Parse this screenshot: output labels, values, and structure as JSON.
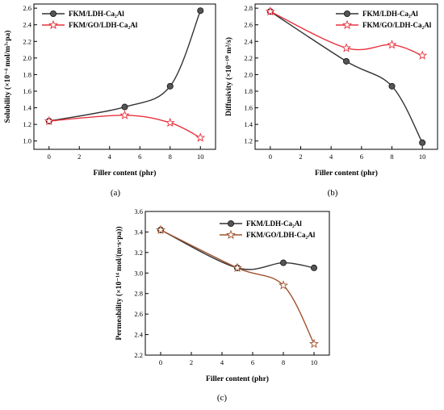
{
  "figure": {
    "captions": [
      "(a)",
      "(b)",
      "(c)"
    ]
  },
  "colors": {
    "ldh": "#333333",
    "ldh_marker": "#555555",
    "go_ab": "#e8323e",
    "go_c": "#a0522d"
  },
  "chart_data": [
    {
      "type": "line",
      "panel": "(a)",
      "xlabel": "Filler content (phr)",
      "ylabel": "Solubility (×10⁻⁴ mol/m³·pa)",
      "xlim": [
        -1,
        11
      ],
      "ylim": [
        0.9,
        2.65
      ],
      "xticks": [
        "0",
        "2",
        "4",
        "6",
        "8",
        "10"
      ],
      "yticks": [
        "1.0",
        "1.2",
        "1.4",
        "1.6",
        "1.8",
        "2.0",
        "2.2",
        "2.4",
        "2.6"
      ],
      "legend_position": "top-left",
      "series": [
        {
          "name": "FKM/LDH-Ca₂Al",
          "marker": "circle",
          "color": "#333333",
          "x": [
            0,
            5,
            8,
            10
          ],
          "y": [
            1.24,
            1.41,
            1.66,
            2.57
          ]
        },
        {
          "name": "FKM/GO/LDH-Ca₂Al",
          "marker": "star",
          "color": "#e8323e",
          "x": [
            0,
            5,
            8,
            10
          ],
          "y": [
            1.24,
            1.31,
            1.22,
            1.04
          ]
        }
      ]
    },
    {
      "type": "line",
      "panel": "(b)",
      "xlabel": "Filler content (phr)",
      "ylabel": "Diffusivity (×10⁻¹⁰ m²/s)",
      "xlim": [
        -1,
        11
      ],
      "ylim": [
        1.1,
        2.85
      ],
      "xticks": [
        "0",
        "2",
        "4",
        "6",
        "8",
        "10"
      ],
      "yticks": [
        "1.2",
        "1.4",
        "1.6",
        "1.8",
        "2.0",
        "2.2",
        "2.4",
        "2.6",
        "2.8"
      ],
      "legend_position": "top-right",
      "series": [
        {
          "name": "FKM/LDH-Ca₂Al",
          "marker": "circle",
          "color": "#333333",
          "x": [
            0,
            5,
            8,
            10
          ],
          "y": [
            2.76,
            2.16,
            1.86,
            1.18
          ]
        },
        {
          "name": "FKM/GO/LDH-Ca₂Al",
          "marker": "star",
          "color": "#e8323e",
          "x": [
            0,
            5,
            8,
            10
          ],
          "y": [
            2.76,
            2.32,
            2.36,
            2.23
          ]
        }
      ]
    },
    {
      "type": "line",
      "panel": "(c)",
      "xlabel": "Filler content (phr)",
      "ylabel": "Permeability (×10⁻¹⁴ mol/(m·s·pa))",
      "xlim": [
        -1,
        11
      ],
      "ylim": [
        2.2,
        3.6
      ],
      "xticks": [
        "0",
        "2",
        "4",
        "6",
        "8",
        "10"
      ],
      "yticks": [
        "2.2",
        "2.4",
        "2.6",
        "2.8",
        "3.0",
        "3.2",
        "3.4",
        "3.6"
      ],
      "legend_position": "top-right",
      "series": [
        {
          "name": "FKM/LDH-Ca₂Al",
          "marker": "circle",
          "color": "#333333",
          "x": [
            0,
            5,
            8,
            10
          ],
          "y": [
            3.42,
            3.05,
            3.1,
            3.05
          ]
        },
        {
          "name": "FKM/GO/LDH-Ca₂Al",
          "marker": "star",
          "color": "#a0522d",
          "x": [
            0,
            5,
            8,
            10
          ],
          "y": [
            3.42,
            3.05,
            2.88,
            2.31
          ]
        }
      ]
    }
  ]
}
